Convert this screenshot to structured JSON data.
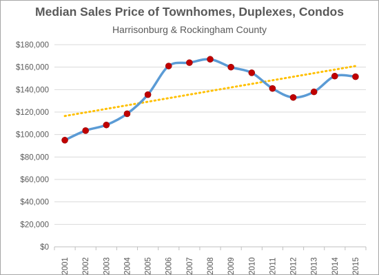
{
  "chart_data": {
    "type": "line",
    "title": "Median Sales Price of Townhomes, Duplexes, Condos",
    "subtitle": "Harrisonburg & Rockingham County",
    "x": [
      "2001",
      "2002",
      "2003",
      "2004",
      "2005",
      "2006",
      "2007",
      "2008",
      "2009",
      "2010",
      "2011",
      "2012",
      "2013",
      "2014",
      "2015"
    ],
    "series": [
      {
        "values": [
          95000,
          103500,
          108500,
          118500,
          135500,
          161000,
          164000,
          167000,
          160000,
          155000,
          141000,
          133000,
          138000,
          152000,
          151500
        ],
        "color": "#5b9bd5",
        "marker_color": "#c00000"
      }
    ],
    "trendline": {
      "style": "dotted",
      "color": "#ffc000",
      "start": 116500,
      "end": 161000
    },
    "ylim": [
      0,
      180000
    ],
    "yticks": [
      0,
      20000,
      40000,
      60000,
      80000,
      100000,
      120000,
      140000,
      160000,
      180000
    ],
    "ytick_labels": [
      "$0",
      "$20,000",
      "$40,000",
      "$60,000",
      "$80,000",
      "$100,000",
      "$120,000",
      "$140,000",
      "$160,000",
      "$180,000"
    ],
    "grid": true,
    "legend": "none",
    "xlabel": "",
    "ylabel": ""
  }
}
